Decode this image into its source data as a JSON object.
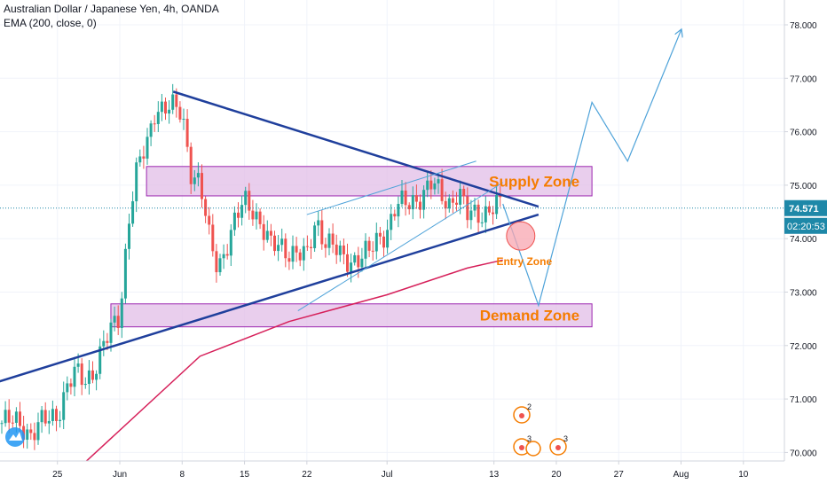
{
  "header": {
    "title": "Australian Dollar / Japanese Yen, 4h, OANDA",
    "indicator": "EMA (200, close, 0)"
  },
  "colors": {
    "bull": "#26a69a",
    "bear": "#ef5350",
    "ema": "#d6205a",
    "trendline": "#1f3f9c",
    "projection": "#4fa3d9",
    "zone_fill": "#e1bee7",
    "zone_border": "#9c27b0",
    "zone_text": "#f57c00",
    "price_tag": "#1e88a8",
    "entry_fill": "#f8a5b0",
    "event_icon": "#f57c00"
  },
  "chart_data": {
    "type": "candlestick",
    "symbol": "AUDJPY",
    "timeframe": "4h",
    "ylim": [
      69.85,
      78.35
    ],
    "y_ticks": [
      "78.000",
      "77.000",
      "76.000",
      "75.000",
      "74.000",
      "73.000",
      "72.000",
      "71.000",
      "70.000"
    ],
    "x_ticks": [
      "25",
      "Jun",
      "8",
      "15",
      "22",
      "Jul",
      "13",
      "20",
      "27",
      "Aug",
      "10"
    ],
    "last_price": "74.571",
    "countdown": "02:20:53",
    "candles_ohlc_anchor": [
      [
        "May 21",
        70.55
      ],
      [
        "May 22",
        70.35
      ],
      [
        "May 25",
        70.75
      ],
      [
        "May 26",
        71.2
      ],
      [
        "May 27",
        71.45
      ],
      [
        "May 28",
        71.35
      ],
      [
        "May 29",
        71.55
      ],
      [
        "Jun 1",
        72.6
      ],
      [
        "Jun 2",
        74.4
      ],
      [
        "Jun 3",
        75.3
      ],
      [
        "Jun 4",
        75.7
      ],
      [
        "Jun 5",
        76.5
      ],
      [
        "Jun 8",
        76.35
      ],
      [
        "Jun 9",
        75.3
      ],
      [
        "Jun 10",
        75.0
      ],
      [
        "Jun 11",
        74.0
      ],
      [
        "Jun 12",
        73.5
      ],
      [
        "Jun 15",
        74.7
      ],
      [
        "Jun 16",
        74.6
      ],
      [
        "Jun 17",
        74.2
      ],
      [
        "Jun 18",
        73.8
      ],
      [
        "Jun 19",
        73.9
      ],
      [
        "Jun 22",
        73.6
      ],
      [
        "Jun 23",
        74.4
      ],
      [
        "Jun 24",
        74.0
      ],
      [
        "Jun 25",
        73.8
      ],
      [
        "Jun 26",
        73.6
      ],
      [
        "Jun 29",
        73.7
      ],
      [
        "Jun 30",
        74.0
      ],
      [
        "Jul 1",
        74.2
      ],
      [
        "Jul 2",
        74.6
      ],
      [
        "Jul 3",
        74.6
      ],
      [
        "Jul 6",
        75.0
      ],
      [
        "Jul 7",
        74.8
      ],
      [
        "Jul 8",
        74.7
      ],
      [
        "Jul 9",
        74.9
      ],
      [
        "Jul 10",
        74.4
      ],
      [
        "Jul 13",
        74.6
      ],
      [
        "Jul 14",
        74.571
      ]
    ],
    "ema_200": [
      [
        "May 28",
        69.8
      ],
      [
        "Jun 10",
        71.8
      ],
      [
        "Jun 20",
        72.45
      ],
      [
        "Jul 1",
        72.95
      ],
      [
        "Jul 10",
        73.45
      ],
      [
        "Jul 14",
        73.6
      ]
    ],
    "annotations": [
      {
        "text": "Supply Zone",
        "low": 74.8,
        "high": 75.35,
        "from": "Jun 4",
        "to": "Jul 24"
      },
      {
        "text": "Demand Zone",
        "low": 72.35,
        "high": 72.78,
        "from": "May 31",
        "to": "Jul 24"
      },
      {
        "text": "Entry Zone",
        "center": 74.05,
        "at": "Jul 16"
      }
    ],
    "trendlines": [
      {
        "name": "descending",
        "from": [
          "Jun 7",
          76.75
        ],
        "to": [
          "Jul 18",
          74.6
        ]
      },
      {
        "name": "ascending",
        "from": [
          "May 15",
          71.15
        ],
        "to": [
          "Jul 18",
          74.45
        ]
      }
    ],
    "projection_path": [
      [
        "Jul 14",
        74.65
      ],
      [
        "Jul 18",
        72.75
      ],
      [
        "Jul 24",
        76.55
      ],
      [
        "Jul 28",
        75.45
      ],
      [
        "Aug 3",
        77.9
      ]
    ],
    "events": [
      {
        "count": "2"
      },
      {
        "count": "3"
      },
      {
        "count": "3"
      }
    ]
  }
}
